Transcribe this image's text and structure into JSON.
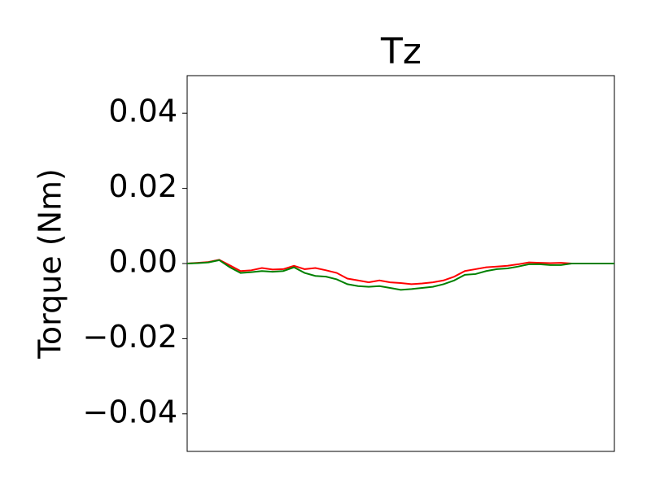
{
  "chart_data": {
    "type": "line",
    "title": "Tz",
    "y_label": "Torque (Nm)",
    "x": [
      0,
      1,
      2,
      3,
      4,
      5,
      6,
      7,
      8,
      9,
      10,
      11,
      12,
      13,
      14,
      15,
      16,
      17,
      18,
      19,
      20,
      21,
      22,
      23,
      24,
      25,
      26,
      27,
      28,
      29,
      30,
      31,
      32,
      33,
      34,
      35,
      36,
      37,
      38,
      39,
      40
    ],
    "xlim": [
      0,
      40
    ],
    "series": [
      {
        "color": "#ff0000",
        "values": [
          0,
          0.0002,
          0.0004,
          0.001,
          -0.0005,
          -0.002,
          -0.0018,
          -0.0012,
          -0.0016,
          -0.0015,
          -0.0006,
          -0.0015,
          -0.0012,
          -0.0018,
          -0.0025,
          -0.004,
          -0.0045,
          -0.005,
          -0.0045,
          -0.005,
          -0.0052,
          -0.0055,
          -0.0053,
          -0.005,
          -0.0045,
          -0.0035,
          -0.002,
          -0.0015,
          -0.001,
          -0.0008,
          -0.0006,
          -0.0002,
          0.0003,
          0.0002,
          0.0001,
          0.0002,
          0,
          0,
          0,
          0,
          0
        ]
      },
      {
        "color": "#008000",
        "values": [
          0,
          0.0001,
          0.0003,
          0.0009,
          -0.001,
          -0.0025,
          -0.0023,
          -0.002,
          -0.0022,
          -0.002,
          -0.001,
          -0.0025,
          -0.0033,
          -0.0035,
          -0.0042,
          -0.0055,
          -0.006,
          -0.0062,
          -0.006,
          -0.0065,
          -0.007,
          -0.0068,
          -0.0065,
          -0.0062,
          -0.0055,
          -0.0045,
          -0.003,
          -0.0028,
          -0.002,
          -0.0015,
          -0.0013,
          -0.0008,
          -0.0002,
          -0.0002,
          -0.0004,
          -0.0004,
          0,
          0,
          0,
          0,
          0
        ]
      }
    ],
    "ylim": [
      -0.05,
      0.05
    ],
    "yticks": [
      {
        "value": -0.04,
        "label": "−0.04"
      },
      {
        "value": -0.02,
        "label": "−0.02"
      },
      {
        "value": 0,
        "label": "0.00"
      },
      0.02,
      0.04
    ],
    "grid": false
  }
}
